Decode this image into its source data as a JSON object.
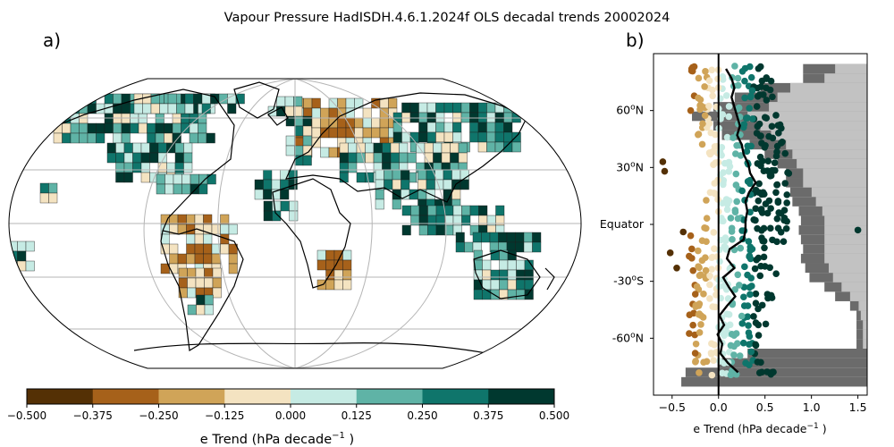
{
  "title": "Vapour Pressure HadISDH.4.6.1.2024f OLS decadal trends 20002024",
  "colors": [
    "#543005",
    "#a6611a",
    "#d0a458",
    "#f4e3c1",
    "#c6ebe4",
    "#5fb3a6",
    "#0f756b",
    "#00382f"
  ],
  "chart_data": [
    {
      "type": "heatmap",
      "panel_label": "a)",
      "projection": "Robinson global map, gridlines every 30° latitude / 60° longitude",
      "colorbar": {
        "ticks": [
          "−0.500",
          "−0.375",
          "−0.250",
          "−0.125",
          "0.000",
          "0.125",
          "0.250",
          "0.375",
          "0.500"
        ],
        "label_main": "e Trend (hPa decade",
        "label_sup": "−1",
        "label_end": " )",
        "range": [
          -0.5,
          0.5
        ]
      }
    },
    {
      "type": "scatter",
      "panel_label": "b)",
      "xlim": [
        -0.7,
        1.6
      ],
      "ylim": [
        -90,
        90
      ],
      "xticks": [
        "−0.5",
        "0.0",
        "0.5",
        "1.0",
        "1.5"
      ],
      "xtick_values": [
        -0.5,
        0,
        0.5,
        1.0,
        1.5
      ],
      "yticks": [
        {
          "label_pre": "60",
          "label_sup": "o",
          "label_post": "N",
          "value": 60
        },
        {
          "label_pre": "30",
          "label_sup": "o",
          "label_post": "N",
          "value": 30
        },
        {
          "label_pre": "Equator",
          "label_sup": "",
          "label_post": "",
          "value": 0
        },
        {
          "label_pre": "-30",
          "label_sup": "o",
          "label_post": "S",
          "value": -30
        },
        {
          "label_pre": "-60",
          "label_sup": "o",
          "label_post": "N",
          "value": -60
        }
      ],
      "xlabel_main": "e Trend (hPa decade",
      "xlabel_sup": "−1",
      "xlabel_end": " )",
      "zonal_mean_line": {
        "lat": [
          82,
          77,
          72,
          67,
          62,
          57,
          52,
          47,
          42,
          37,
          32,
          27,
          22,
          17,
          12,
          7,
          2,
          -3,
          -8,
          -13,
          -18,
          -23,
          -28,
          -33,
          -38,
          -43,
          -48,
          -53,
          -58,
          -63,
          -68,
          -73,
          -78
        ],
        "trend": [
          0.08,
          0.14,
          0.17,
          0.14,
          0.17,
          0.2,
          0.23,
          0.2,
          0.25,
          0.27,
          0.32,
          0.34,
          0.4,
          0.33,
          0.29,
          0.31,
          0.29,
          0.29,
          0.27,
          0.12,
          0.09,
          0.17,
          0.05,
          0.11,
          0.18,
          0.09,
          0.01,
          0.06,
          -0.01,
          0.04,
          0.02,
          0.1,
          0.21
        ]
      },
      "land_coverage_fraction": {
        "lat": [
          82,
          77,
          72,
          67,
          62,
          57,
          52,
          47,
          42,
          37,
          32,
          27,
          22,
          17,
          12,
          7,
          2,
          -3,
          -8,
          -13,
          -18,
          -23,
          -28,
          -33,
          -38,
          -43,
          -48,
          -53,
          -58,
          -63,
          -68,
          -73,
          -78,
          -83
        ],
        "fraction": [
          0.3,
          0.3,
          0.5,
          0.62,
          0.72,
          0.82,
          0.72,
          0.68,
          0.55,
          0.48,
          0.42,
          0.38,
          0.38,
          0.36,
          0.35,
          0.32,
          0.31,
          0.32,
          0.31,
          0.3,
          0.31,
          0.29,
          0.27,
          0.2,
          0.15,
          0.08,
          0.05,
          0.05,
          0.05,
          0.05,
          0.56,
          0.7,
          0.85,
          0.87
        ]
      },
      "observed_coverage_fraction": {
        "lat": [
          82,
          77,
          72,
          67,
          62,
          57,
          52,
          47,
          42,
          37,
          32,
          27,
          22,
          17,
          12,
          7,
          2,
          -3,
          -8,
          -13,
          -18,
          -23,
          -28,
          -33,
          -38,
          -43,
          -48,
          -53,
          -58,
          -63
        ],
        "fraction": [
          0.15,
          0.2,
          0.36,
          0.42,
          0.46,
          0.56,
          0.5,
          0.45,
          0.38,
          0.35,
          0.33,
          0.3,
          0.3,
          0.26,
          0.24,
          0.21,
          0.2,
          0.2,
          0.2,
          0.2,
          0.2,
          0.18,
          0.16,
          0.12,
          0.08,
          0.04,
          0.03,
          0.02,
          0.02,
          0.02
        ]
      },
      "outliers": [
        {
          "lat": 60,
          "trend": -0.3
        },
        {
          "lat": 33,
          "trend": -0.6
        },
        {
          "lat": 28,
          "trend": -0.58
        },
        {
          "lat": -4,
          "trend": -0.38
        },
        {
          "lat": -6,
          "trend": -0.3
        },
        {
          "lat": -15,
          "trend": -0.52
        },
        {
          "lat": -23,
          "trend": -0.45
        },
        {
          "lat": -3,
          "trend": 1.5
        },
        {
          "lat": -26,
          "trend": 0.62
        }
      ]
    }
  ]
}
